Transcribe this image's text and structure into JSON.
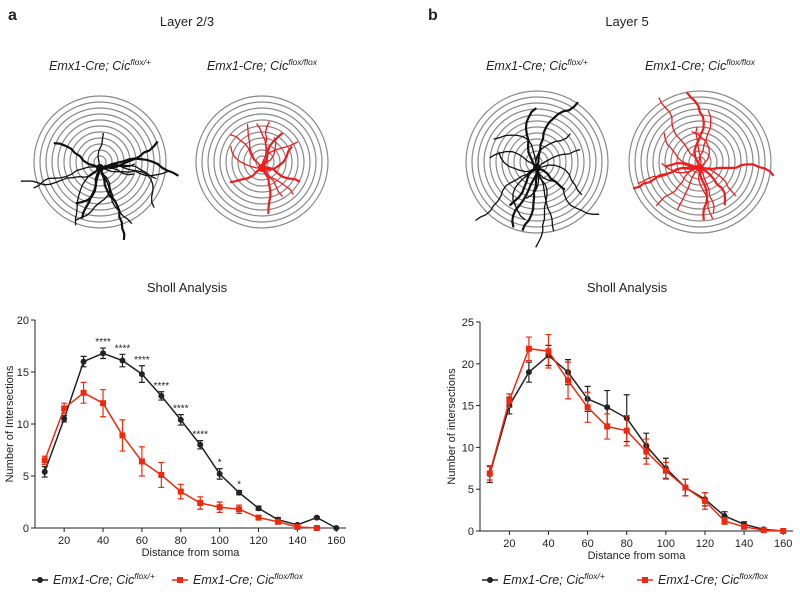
{
  "panels": [
    {
      "label": "a",
      "layer": "Layer 2/3",
      "images": [
        {
          "label": "Emx1-Cre; Cic",
          "sup": "flox/+"
        },
        {
          "label": "Emx1-Cre; Cic",
          "sup": "flox/flox"
        }
      ]
    },
    {
      "label": "b",
      "layer": "Layer 5",
      "images": [
        {
          "label": "Emx1-Cre; Cic",
          "sup": "flox/+"
        },
        {
          "label": "Emx1-Cre; Cic",
          "sup": "flox/flox"
        }
      ]
    }
  ],
  "chart_data": [
    {
      "type": "line",
      "title": "Sholl Analysis",
      "xlabel": "Distance from soma",
      "ylabel": "Number of Intersections",
      "x": [
        10,
        20,
        30,
        40,
        50,
        60,
        70,
        80,
        90,
        100,
        110,
        120,
        130,
        140,
        150,
        160
      ],
      "xlim": [
        5,
        165
      ],
      "xticks": [
        20,
        40,
        60,
        80,
        100,
        120,
        140,
        160
      ],
      "ylim": [
        0,
        20
      ],
      "yticks": [
        0,
        5,
        10,
        15,
        20
      ],
      "series": [
        {
          "name": "Emx1-Cre; Cic",
          "name_sup": "flox/+",
          "color": "#222222",
          "marker": "circle",
          "values": [
            5.4,
            10.5,
            16.0,
            16.8,
            16.1,
            14.8,
            12.7,
            10.4,
            8.0,
            5.2,
            3.4,
            1.9,
            0.8,
            0.3,
            1.0,
            0.0
          ],
          "errors": [
            0.5,
            0.3,
            0.5,
            0.5,
            0.6,
            0.8,
            0.4,
            0.5,
            0.4,
            0.5,
            0.2,
            0.2,
            0.2,
            0.1,
            0.1,
            0
          ]
        },
        {
          "name": "Emx1-Cre; Cic",
          "name_sup": "flox/flox",
          "color": "#ee2a0e",
          "marker": "square",
          "values": [
            6.5,
            11.5,
            13.0,
            12.0,
            8.9,
            6.4,
            5.1,
            3.5,
            2.4,
            2.0,
            1.8,
            1.0,
            0.6,
            0.1,
            0.0,
            null
          ],
          "errors": [
            0.4,
            0.5,
            1.0,
            1.3,
            1.5,
            1.4,
            1.2,
            0.7,
            0.6,
            0.5,
            0.4,
            0.2,
            0.2,
            0.1,
            0.1,
            null
          ]
        }
      ],
      "annotations": [
        {
          "x": 40,
          "text": "****"
        },
        {
          "x": 50,
          "text": "****"
        },
        {
          "x": 60,
          "text": "****"
        },
        {
          "x": 70,
          "text": "****"
        },
        {
          "x": 80,
          "text": "****"
        },
        {
          "x": 90,
          "text": "****"
        },
        {
          "x": 100,
          "text": "*"
        },
        {
          "x": 110,
          "text": "*"
        }
      ]
    },
    {
      "type": "line",
      "title": "Sholl Analysis",
      "xlabel": "Distance from soma",
      "ylabel": "Number of intersections",
      "x": [
        10,
        20,
        30,
        40,
        50,
        60,
        70,
        80,
        90,
        100,
        110,
        120,
        130,
        140,
        150,
        160
      ],
      "xlim": [
        5,
        165
      ],
      "xticks": [
        20,
        40,
        60,
        80,
        100,
        120,
        140,
        160
      ],
      "ylim": [
        0,
        25
      ],
      "yticks": [
        0,
        5,
        10,
        15,
        20,
        25
      ],
      "series": [
        {
          "name": "Emx1-Cre; Cic",
          "name_sup": "flox/+",
          "color": "#222222",
          "marker": "circle",
          "values": [
            6.8,
            15.0,
            19.0,
            21.0,
            19.0,
            15.8,
            14.8,
            13.5,
            10.2,
            7.5,
            5.2,
            3.8,
            1.8,
            0.8,
            0.2,
            0.0
          ],
          "errors": [
            1.0,
            1.0,
            1.2,
            1.2,
            1.5,
            1.5,
            2.0,
            2.8,
            1.5,
            1.2,
            1.0,
            0.8,
            0.5,
            0.3,
            0.1,
            0
          ]
        },
        {
          "name": "Emx1-Cre; Cic",
          "name_sup": "flox/flox",
          "color": "#ee2a0e",
          "marker": "square",
          "values": [
            6.9,
            15.6,
            21.8,
            21.5,
            18.0,
            14.8,
            12.5,
            12.0,
            9.5,
            7.2,
            5.2,
            3.6,
            1.2,
            0.5,
            0.1,
            0.0
          ],
          "errors": [
            0.8,
            0.8,
            1.4,
            2.0,
            2.2,
            1.8,
            1.5,
            1.8,
            1.5,
            1.0,
            1.0,
            1.0,
            0.4,
            0.2,
            0.1,
            0
          ]
        }
      ],
      "annotations": []
    }
  ]
}
